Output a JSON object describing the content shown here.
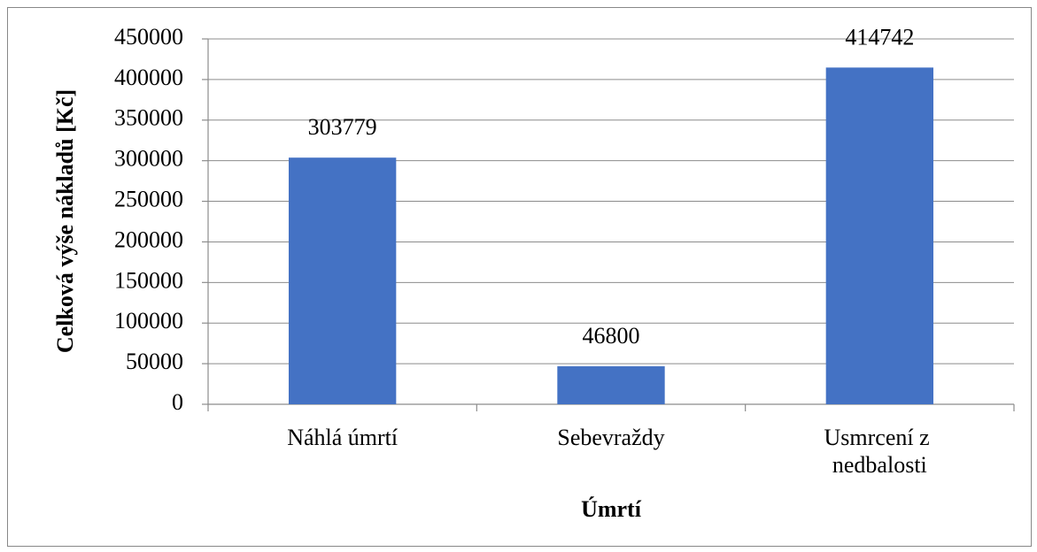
{
  "chart_data": {
    "type": "bar",
    "categories": [
      "Náhlá úmrtí",
      "Sebevraždy",
      "Usmrcení z nedbalosti"
    ],
    "values": [
      303779,
      46800,
      414742
    ],
    "color": "#4472c4",
    "x_label": "Úmrtí",
    "y_label": "Celková výše nákladů [Kč]",
    "ylim": [
      0,
      450000
    ],
    "yticks": [
      0,
      50000,
      100000,
      150000,
      200000,
      250000,
      300000,
      350000,
      400000,
      450000
    ],
    "grid": true
  }
}
